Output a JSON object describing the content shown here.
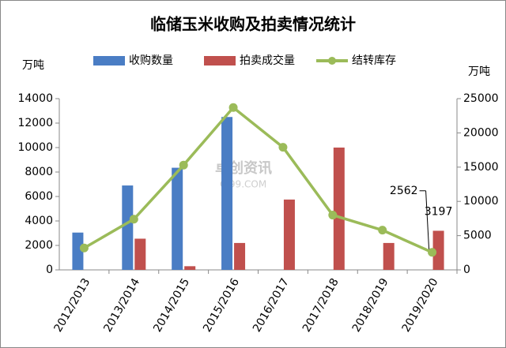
{
  "chart_data": {
    "type": "bar-line",
    "title": "临储玉米收购及拍卖情况统计",
    "y_label": "万吨",
    "y2_label": "万吨",
    "watermark": "卓创资讯",
    "watermark_sub": "CI99.COM",
    "categories": [
      "2012/2013",
      "2013/2014",
      "2014/2015",
      "2015/2016",
      "2016/2017",
      "2017/2018",
      "2018/2019",
      "2019/2020"
    ],
    "series": [
      {
        "name": "收购数量",
        "color": "#4a7dc4",
        "type": "bar",
        "values": [
          3050,
          6900,
          8350,
          12500,
          null,
          null,
          null,
          null
        ]
      },
      {
        "name": "拍卖成交量",
        "color": "#c0504d",
        "type": "bar",
        "values": [
          null,
          2550,
          300,
          2200,
          5750,
          10000,
          2200,
          3197
        ]
      },
      {
        "name": "结转库存",
        "color": "#9bbb59",
        "type": "line",
        "axis": "y2",
        "values": [
          3200,
          7400,
          15300,
          23700,
          17900,
          8000,
          5800,
          2562
        ]
      }
    ],
    "ylim": [
      0,
      14000
    ],
    "yticks": [
      0,
      2000,
      4000,
      6000,
      8000,
      10000,
      12000,
      14000
    ],
    "y2lim": [
      0,
      25000
    ],
    "y2ticks": [
      0,
      5000,
      10000,
      15000,
      20000,
      25000
    ]
  }
}
